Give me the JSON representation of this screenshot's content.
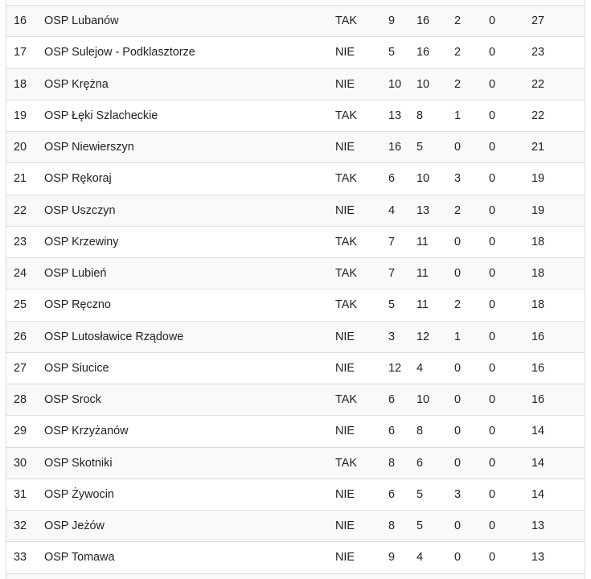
{
  "colors": {
    "stripe": "#f9f9f9",
    "border": "#dddddd",
    "text": "#222222"
  },
  "table": {
    "rows": [
      [
        "16",
        "OSP Lubanów",
        "TAK",
        "9",
        "16",
        "2",
        "0",
        "27"
      ],
      [
        "17",
        "OSP Sulejow - Podklasztorze",
        "NIE",
        "5",
        "16",
        "2",
        "0",
        "23"
      ],
      [
        "18",
        "OSP Krężna",
        "NIE",
        "10",
        "10",
        "2",
        "0",
        "22"
      ],
      [
        "19",
        "OSP Łęki Szlacheckie",
        "TAK",
        "13",
        "8",
        "1",
        "0",
        "22"
      ],
      [
        "20",
        "OSP Niewierszyn",
        "NIE",
        "16",
        "5",
        "0",
        "0",
        "21"
      ],
      [
        "21",
        "OSP Rękoraj",
        "TAK",
        "6",
        "10",
        "3",
        "0",
        "19"
      ],
      [
        "22",
        "OSP Uszczyn",
        "NIE",
        "4",
        "13",
        "2",
        "0",
        "19"
      ],
      [
        "23",
        "OSP Krzewiny",
        "TAK",
        "7",
        "11",
        "0",
        "0",
        "18"
      ],
      [
        "24",
        "OSP Lubień",
        "TAK",
        "7",
        "11",
        "0",
        "0",
        "18"
      ],
      [
        "25",
        "OSP Ręczno",
        "TAK",
        "5",
        "11",
        "2",
        "0",
        "18"
      ],
      [
        "26",
        "OSP Lutosławice Rządowe",
        "NIE",
        "3",
        "12",
        "1",
        "0",
        "16"
      ],
      [
        "27",
        "OSP Siucice",
        "NIE",
        "12",
        "4",
        "0",
        "0",
        "16"
      ],
      [
        "28",
        "OSP Srock",
        "TAK",
        "6",
        "10",
        "0",
        "0",
        "16"
      ],
      [
        "29",
        "OSP Krzyżanów",
        "NIE",
        "6",
        "8",
        "0",
        "0",
        "14"
      ],
      [
        "30",
        "OSP Skotniki",
        "TAK",
        "8",
        "6",
        "0",
        "0",
        "14"
      ],
      [
        "31",
        "OSP Żywocin",
        "NIE",
        "6",
        "5",
        "3",
        "0",
        "14"
      ],
      [
        "32",
        "OSP Jeżów",
        "NIE",
        "8",
        "5",
        "0",
        "0",
        "13"
      ],
      [
        "33",
        "OSP Tomawa",
        "NIE",
        "9",
        "4",
        "0",
        "0",
        "13"
      ]
    ]
  }
}
